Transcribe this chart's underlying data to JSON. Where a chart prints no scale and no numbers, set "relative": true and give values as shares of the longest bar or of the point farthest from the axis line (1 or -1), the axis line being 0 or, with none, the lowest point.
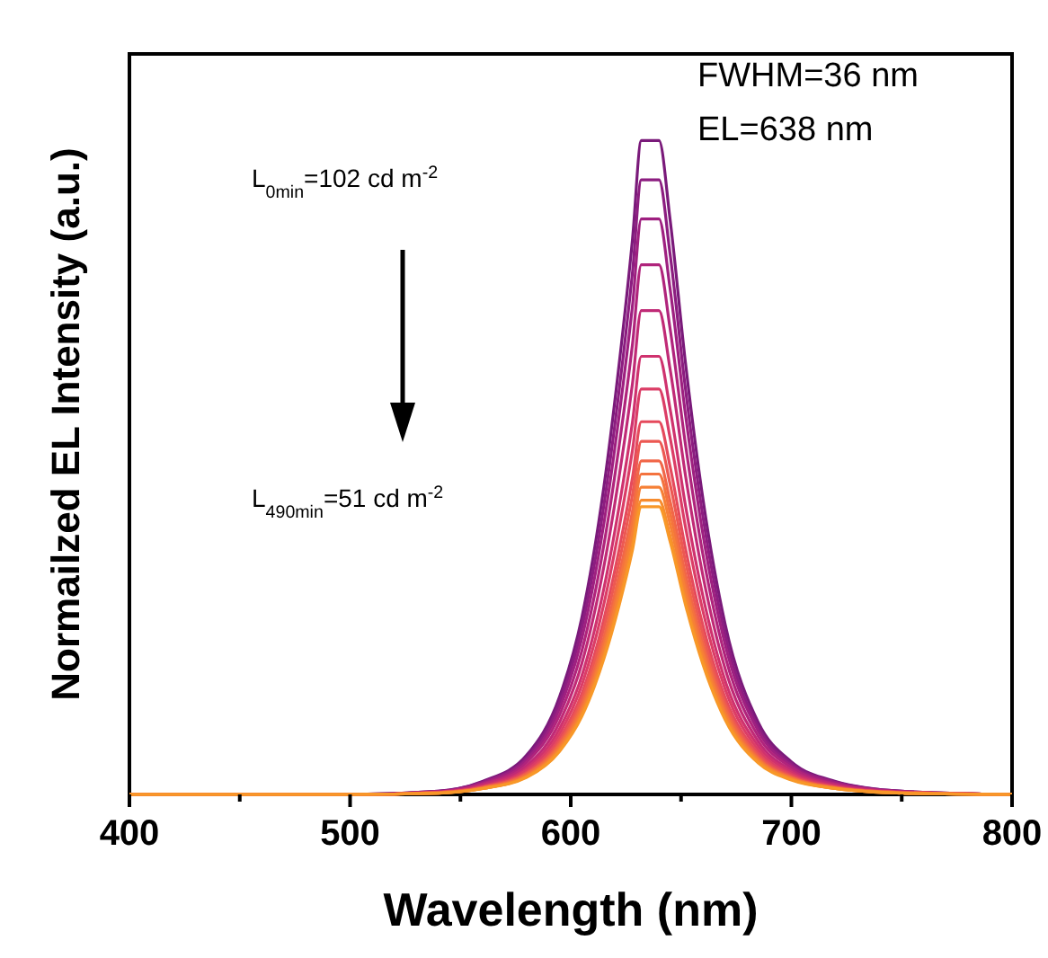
{
  "chart_data": {
    "type": "line",
    "relative": true,
    "xlabel": "Wavelength (nm)",
    "ylabel": "Normailzed EL Intensity (a.u.)",
    "xlim": [
      400,
      800
    ],
    "xticks": [
      400,
      {
        "value": 450,
        "label": null
      },
      500,
      {
        "value": 550,
        "label": null
      },
      600,
      {
        "value": 650,
        "label": null
      },
      700,
      {
        "value": 750,
        "label": null
      },
      800
    ],
    "annotations": [
      "FWHM=36 nm",
      "EL=638 nm",
      "L$_{0min}$=102 cd m$^{-2}$",
      "L$_{490min}$=51 cd m$^{-2}$"
    ],
    "x": [
      400,
      500,
      540,
      560,
      580,
      595,
      605,
      615,
      622,
      628,
      632,
      640,
      645,
      652,
      660,
      670,
      685,
      700,
      720,
      750,
      800
    ],
    "series": [
      {
        "color": "#7a1a7a",
        "values": [
          0,
          0,
          0.005,
          0.02,
          0.06,
          0.15,
          0.27,
          0.47,
          0.66,
          0.85,
          1,
          1,
          0.88,
          0.66,
          0.45,
          0.26,
          0.11,
          0.05,
          0.02,
          0.005,
          0
        ]
      },
      {
        "color": "#8c1d80",
        "values": [
          0,
          0,
          0.005,
          0.019,
          0.056,
          0.141,
          0.254,
          0.442,
          0.62,
          0.799,
          0.94,
          0.94,
          0.827,
          0.62,
          0.423,
          0.244,
          0.103,
          0.047,
          0.019,
          0.005,
          0
        ]
      },
      {
        "color": "#9e2080",
        "values": [
          0,
          0,
          0.004,
          0.018,
          0.053,
          0.132,
          0.238,
          0.414,
          0.581,
          0.748,
          0.88,
          0.88,
          0.774,
          0.581,
          0.396,
          0.229,
          0.097,
          0.044,
          0.018,
          0.004,
          0
        ]
      },
      {
        "color": "#b0247c",
        "values": [
          0,
          0,
          0.004,
          0.016,
          0.049,
          0.122,
          0.219,
          0.381,
          0.535,
          0.689,
          0.81,
          0.81,
          0.713,
          0.535,
          0.365,
          0.211,
          0.089,
          0.041,
          0.016,
          0.004,
          0
        ]
      },
      {
        "color": "#c02a76",
        "values": [
          0,
          0,
          0.004,
          0.015,
          0.044,
          0.111,
          0.2,
          0.348,
          0.488,
          0.629,
          0.74,
          0.74,
          0.651,
          0.488,
          0.333,
          0.192,
          0.081,
          0.037,
          0.015,
          0.004,
          0
        ]
      },
      {
        "color": "#cf326e",
        "values": [
          0,
          0,
          0.003,
          0.013,
          0.04,
          0.101,
          0.181,
          0.315,
          0.442,
          0.57,
          0.67,
          0.67,
          0.59,
          0.442,
          0.302,
          0.174,
          0.074,
          0.034,
          0.013,
          0.003,
          0
        ]
      },
      {
        "color": "#db3d66",
        "values": [
          0,
          0,
          0.003,
          0.012,
          0.037,
          0.093,
          0.167,
          0.291,
          0.409,
          0.527,
          0.62,
          0.62,
          0.546,
          0.409,
          0.279,
          0.161,
          0.068,
          0.031,
          0.012,
          0.003,
          0
        ]
      },
      {
        "color": "#e54a5c",
        "values": [
          0,
          0,
          0.003,
          0.011,
          0.034,
          0.086,
          0.154,
          0.268,
          0.376,
          0.485,
          0.57,
          0.57,
          0.502,
          0.376,
          0.257,
          0.148,
          0.063,
          0.029,
          0.011,
          0.003,
          0
        ]
      },
      {
        "color": "#ec5852",
        "values": [
          0,
          0,
          0.003,
          0.011,
          0.032,
          0.081,
          0.146,
          0.254,
          0.356,
          0.459,
          0.54,
          0.54,
          0.475,
          0.356,
          0.243,
          0.14,
          0.059,
          0.027,
          0.011,
          0.003,
          0
        ]
      },
      {
        "color": "#f16648",
        "values": [
          0,
          0,
          0.003,
          0.01,
          0.031,
          0.077,
          0.138,
          0.24,
          0.337,
          0.434,
          0.51,
          0.51,
          0.449,
          0.337,
          0.23,
          0.133,
          0.056,
          0.026,
          0.01,
          0.003,
          0
        ]
      },
      {
        "color": "#f4733e",
        "values": [
          0,
          0,
          0.002,
          0.01,
          0.029,
          0.074,
          0.132,
          0.23,
          0.323,
          0.417,
          0.49,
          0.49,
          0.431,
          0.323,
          0.221,
          0.127,
          0.054,
          0.025,
          0.01,
          0.002,
          0
        ]
      },
      {
        "color": "#f68036",
        "values": [
          0,
          0,
          0.002,
          0.009,
          0.028,
          0.071,
          0.127,
          0.221,
          0.31,
          0.4,
          0.47,
          0.47,
          0.414,
          0.31,
          0.212,
          0.122,
          0.052,
          0.024,
          0.009,
          0.002,
          0
        ]
      },
      {
        "color": "#f78c2e",
        "values": [
          0,
          0,
          0.002,
          0.009,
          0.027,
          0.068,
          0.122,
          0.212,
          0.297,
          0.383,
          0.45,
          0.45,
          0.396,
          0.297,
          0.203,
          0.117,
          0.05,
          0.023,
          0.009,
          0.002,
          0
        ]
      },
      {
        "color": "#f89828",
        "values": [
          0,
          0,
          0.002,
          0.009,
          0.026,
          0.066,
          0.119,
          0.207,
          0.29,
          0.374,
          0.44,
          0.44,
          0.387,
          0.29,
          0.198,
          0.114,
          0.048,
          0.022,
          0.009,
          0.002,
          0
        ]
      }
    ]
  }
}
